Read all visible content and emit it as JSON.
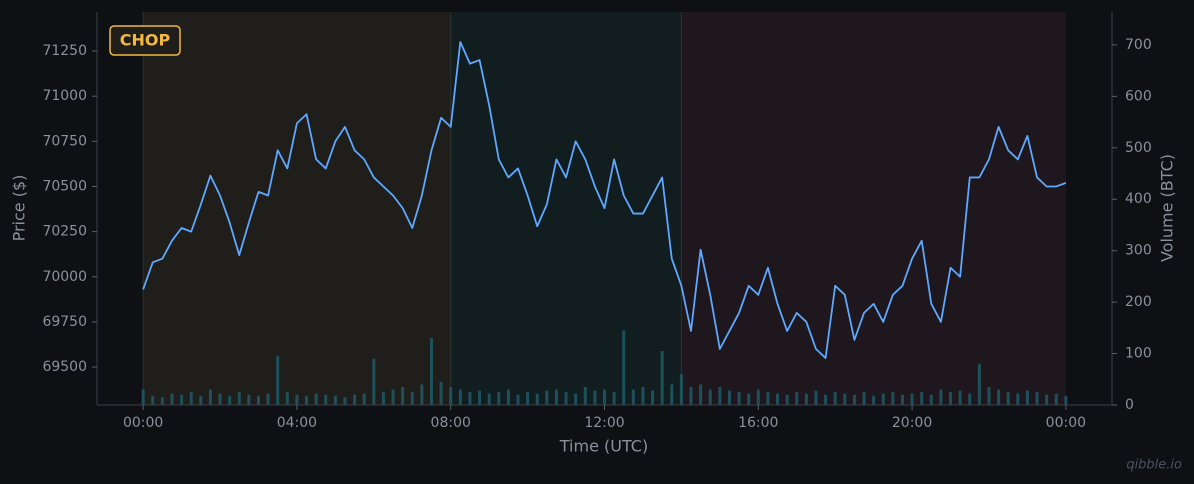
{
  "chart_data": {
    "type": "line",
    "badge": "CHOP",
    "watermark": "qibble.io",
    "xlabel": "Time (UTC)",
    "ylabel": "Price ($)",
    "y2label": "Volume (BTC)",
    "xlim": [
      -1.2,
      25.2
    ],
    "xticks": [
      {
        "value": 0,
        "label": "00:00"
      },
      {
        "value": 4,
        "label": "04:00"
      },
      {
        "value": 8,
        "label": "08:00"
      },
      {
        "value": 12,
        "label": "12:00"
      },
      {
        "value": 16,
        "label": "16:00"
      },
      {
        "value": 20,
        "label": "20:00"
      },
      {
        "value": 24,
        "label": "00:00"
      }
    ],
    "ylim": [
      69290,
      71466
    ],
    "yticks": [
      69500,
      69750,
      70000,
      70250,
      70500,
      70750,
      71000,
      71250
    ],
    "y2lim": [
      0,
      764
    ],
    "y2ticks": [
      0,
      100,
      200,
      300,
      400,
      500,
      600,
      700
    ],
    "regions": [
      {
        "start": 0,
        "end": 8,
        "color": "#1f1e1b"
      },
      {
        "start": 8,
        "end": 14,
        "color": "#121d20"
      },
      {
        "start": 14,
        "end": 24,
        "color": "#1e171d"
      }
    ],
    "x": [
      0,
      0.25,
      0.5,
      0.75,
      1,
      1.25,
      1.5,
      1.75,
      2,
      2.25,
      2.5,
      2.75,
      3,
      3.25,
      3.5,
      3.75,
      4,
      4.25,
      4.5,
      4.75,
      5,
      5.25,
      5.5,
      5.75,
      6,
      6.25,
      6.5,
      6.75,
      7,
      7.25,
      7.5,
      7.75,
      8,
      8.25,
      8.5,
      8.75,
      9,
      9.25,
      9.5,
      9.75,
      10,
      10.25,
      10.5,
      10.75,
      11,
      11.25,
      11.5,
      11.75,
      12,
      12.25,
      12.5,
      12.75,
      13,
      13.25,
      13.5,
      13.75,
      14,
      14.25,
      14.5,
      14.75,
      15,
      15.25,
      15.5,
      15.75,
      16,
      16.25,
      16.5,
      16.75,
      17,
      17.25,
      17.5,
      17.75,
      18,
      18.25,
      18.5,
      18.75,
      19,
      19.25,
      19.5,
      19.75,
      20,
      20.25,
      20.5,
      20.75,
      21,
      21.25,
      21.5,
      21.75,
      22,
      22.25,
      22.5,
      22.75,
      23,
      23.25,
      23.5,
      23.75,
      24
    ],
    "series": [
      {
        "name": "Price",
        "color": "#5fa8ff",
        "axis": "y",
        "kind": "line",
        "values": [
          69930,
          70080,
          70100,
          70200,
          70270,
          70250,
          70400,
          70560,
          70450,
          70300,
          70120,
          70300,
          70470,
          70450,
          70700,
          70600,
          70850,
          70900,
          70650,
          70600,
          70750,
          70830,
          70700,
          70650,
          70550,
          70500,
          70450,
          70380,
          70270,
          70450,
          70700,
          70880,
          70830,
          71300,
          71180,
          71200,
          70950,
          70650,
          70550,
          70600,
          70450,
          70280,
          70400,
          70650,
          70550,
          70750,
          70650,
          70500,
          70380,
          70650,
          70450,
          70350,
          70350,
          70450,
          70550,
          70100,
          69950,
          69700,
          70150,
          69900,
          69600,
          69700,
          69800,
          69950,
          69900,
          70050,
          69850,
          69700,
          69800,
          69750,
          69600,
          69550,
          69950,
          69900,
          69650,
          69800,
          69850,
          69750,
          69900,
          69950,
          70100,
          70200,
          69850,
          69750,
          70050,
          70000,
          70550,
          70550,
          70650,
          70830,
          70700,
          70650,
          70780,
          70550,
          70500,
          70500,
          70520
        ]
      },
      {
        "name": "Volume",
        "color": "#1f5a66",
        "axis": "y2",
        "kind": "bar",
        "values": [
          30,
          18,
          15,
          22,
          20,
          25,
          18,
          30,
          22,
          18,
          25,
          20,
          18,
          22,
          95,
          25,
          20,
          18,
          22,
          20,
          18,
          15,
          20,
          22,
          90,
          25,
          30,
          35,
          25,
          40,
          130,
          45,
          35,
          30,
          25,
          28,
          22,
          25,
          30,
          20,
          25,
          22,
          28,
          30,
          25,
          22,
          35,
          28,
          30,
          25,
          145,
          30,
          35,
          28,
          105,
          40,
          60,
          35,
          40,
          30,
          35,
          28,
          25,
          22,
          30,
          25,
          22,
          20,
          25,
          22,
          28,
          20,
          25,
          22,
          20,
          25,
          18,
          22,
          25,
          20,
          22,
          25,
          20,
          30,
          25,
          28,
          22,
          80,
          35,
          30,
          25,
          22,
          28,
          25,
          20,
          22,
          18
        ]
      }
    ]
  }
}
